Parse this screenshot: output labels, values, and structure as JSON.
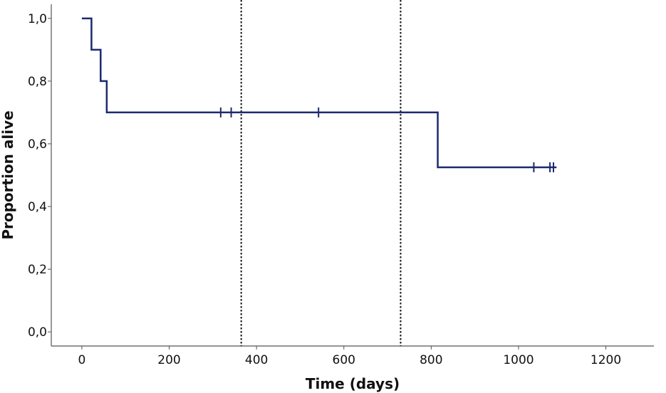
{
  "chart_data": {
    "type": "line",
    "subtype": "kaplan-meier step",
    "title": "",
    "xlabel": "Time (days)",
    "ylabel": "Proportion alive",
    "xlim": [
      -70,
      1310
    ],
    "ylim": [
      -0.045,
      1.045
    ],
    "x_ticks": [
      0,
      200,
      400,
      600,
      800,
      1000,
      1200
    ],
    "y_ticks": [
      0.0,
      0.2,
      0.4,
      0.6,
      0.8,
      1.0
    ],
    "x_tick_labels": [
      "0",
      "200",
      "400",
      "600",
      "800",
      "1000",
      "1200"
    ],
    "y_tick_labels": [
      "0,0",
      "0,2",
      "0,4",
      "0,6",
      "0,8",
      "1,0"
    ],
    "grid": false,
    "series": [
      {
        "color": "#1c2a6e",
        "steps": [
          {
            "x": 0,
            "y": 1.0
          },
          {
            "x": 22,
            "y": 0.9
          },
          {
            "x": 43,
            "y": 0.8
          },
          {
            "x": 57,
            "y": 0.7
          },
          {
            "x": 815,
            "y": 0.525
          },
          {
            "x": 1087,
            "y": 0.525
          }
        ],
        "censored": [
          {
            "x": 318,
            "y": 0.7
          },
          {
            "x": 342,
            "y": 0.7
          },
          {
            "x": 542,
            "y": 0.7
          },
          {
            "x": 1035,
            "y": 0.525
          },
          {
            "x": 1072,
            "y": 0.525
          },
          {
            "x": 1080,
            "y": 0.525
          }
        ]
      }
    ],
    "reference_lines": [
      {
        "x": 365,
        "style": "dotted",
        "color": "#111111"
      },
      {
        "x": 730,
        "style": "dotted",
        "color": "#111111"
      }
    ]
  }
}
